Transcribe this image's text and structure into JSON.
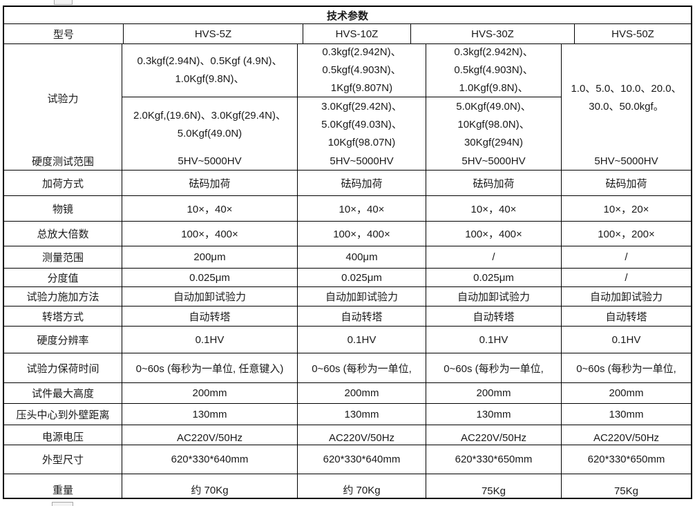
{
  "title": "技术参数",
  "colors": {
    "border": "#000000",
    "text": "#1a1a1a",
    "handle": "#a8a8a8"
  },
  "header": {
    "label": "型号",
    "models": [
      "HVS-5Z",
      "HVS-10Z",
      "HVS-30Z",
      "HVS-50Z"
    ]
  },
  "force": {
    "label": "试验力",
    "upper": [
      "0.3kgf(2.94N)、0.5Kgf (4.9N)、\n1.0Kgf(9.8N)、",
      "0.3kgf(2.942N)、\n0.5kgf(4.903N)、\n1Kgf(9.807N)",
      "0.3kgf(2.942N)、\n0.5kgf(4.903N)、\n1.0Kgf(9.8N)、"
    ],
    "lower": [
      "2.0Kgf,(19.6N)、3.0Kgf(29.4N)、\n5.0Kgf(49.0N)",
      "3.0Kgf(29.42N)、\n5.0Kgf(49.03N)、\n10Kgf(98.07N)",
      "5.0Kgf(49.0N)、\n10Kgf(98.0N)、\n30Kgf(294N)"
    ],
    "hvs50z": "1.0、5.0、10.0、20.0、\n30.0、50.0kgf。"
  },
  "rows": [
    {
      "label": "硬度测试范围",
      "values": [
        "5HV~5000HV",
        "5HV~5000HV",
        "5HV~5000HV",
        "5HV~5000HV"
      ]
    },
    {
      "label": "加荷方式",
      "values": [
        "砝码加荷",
        "砝码加荷",
        "砝码加荷",
        "砝码加荷"
      ]
    },
    {
      "label": "物镜",
      "values": [
        "10×，40×",
        "10×，40×",
        "10×，40×",
        "10×，20×"
      ]
    },
    {
      "label": "总放大倍数",
      "values": [
        "100×，400×",
        "100×，400×",
        "100×，400×",
        "100×，200×"
      ]
    },
    {
      "label": "测量范围",
      "values": [
        "200μm",
        "400μm",
        "/",
        "/"
      ]
    },
    {
      "label": "分度值",
      "values": [
        "0.025μm",
        "0.025μm",
        "0.025μm",
        "/"
      ]
    },
    {
      "label": "试验力施加方法",
      "values": [
        "自动加卸试验力",
        "自动加卸试验力",
        "自动加卸试验力",
        "自动加卸试验力"
      ]
    },
    {
      "label": "转塔方式",
      "values": [
        "自动转塔",
        "自动转塔",
        "自动转塔",
        "自动转塔"
      ]
    },
    {
      "label": "硬度分辨率",
      "values": [
        "0.1HV",
        "0.1HV",
        "0.1HV",
        "0.1HV"
      ]
    },
    {
      "label": "试验力保荷时间",
      "values": [
        "0~60s (每秒为一单位, 任意键入)",
        "0~60s (每秒为一单位,",
        "0~60s (每秒为一单位,",
        "0~60s (每秒为一单位,"
      ]
    },
    {
      "label": "试件最大高度",
      "values": [
        "200mm",
        "200mm",
        "200mm",
        "200mm"
      ]
    },
    {
      "label": "压头中心到外壁距离",
      "values": [
        "130mm",
        "130mm",
        "130mm",
        "130mm"
      ]
    },
    {
      "label": "电源电压",
      "values": [
        "AC220V/50Hz",
        "AC220V/50Hz",
        "AC220V/50Hz",
        "AC220V/50Hz"
      ]
    },
    {
      "label": "外型尺寸",
      "values": [
        "620*330*640mm",
        "620*330*640mm",
        "620*330*650mm",
        "620*330*650mm"
      ]
    },
    {
      "label": "重量",
      "values": [
        "约 70Kg",
        "约 70Kg",
        "75Kg",
        "75Kg"
      ]
    }
  ]
}
